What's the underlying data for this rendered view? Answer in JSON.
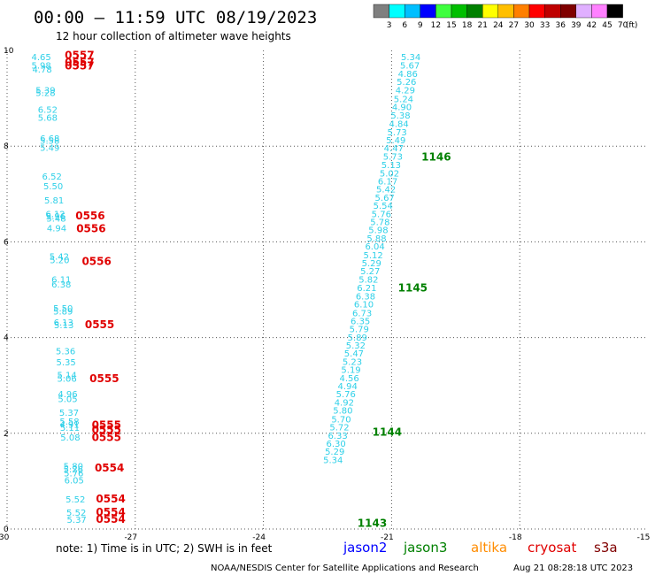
{
  "header": {
    "title": "00:00 — 11:59 UTC 08/19/2023",
    "subtitle": "12 hour collection of altimeter wave heights"
  },
  "color_scale": {
    "colors": [
      "#7f7f7f",
      "#00ffff",
      "#00bfff",
      "#0000ff",
      "#3fff3f",
      "#00bf00",
      "#008000",
      "#ffff00",
      "#ffbf00",
      "#ff7f00",
      "#ff0000",
      "#bf0000",
      "#7f0000",
      "#e0b0ff",
      "#ff80ff",
      "#000000"
    ],
    "labels": [
      "3",
      "6",
      "9",
      "12",
      "15",
      "18",
      "21",
      "24",
      "27",
      "30",
      "33",
      "36",
      "39",
      "42",
      "45",
      "70"
    ],
    "unit": "(ft)"
  },
  "footer": {
    "note": "note:  1) Time is in UTC;  2) SWH is in feet",
    "satellites": [
      {
        "name": "jason2",
        "color": "#0000ff"
      },
      {
        "name": "jason3",
        "color": "#008000"
      },
      {
        "name": "altika",
        "color": "#ff8c00"
      },
      {
        "name": "cryosat",
        "color": "#e00000"
      },
      {
        "name": "s3a",
        "color": "#800000"
      }
    ],
    "credit": "NOAA/NESDIS Center for Satellite Applications and Research",
    "timestamp": "Aug 21 08:28:18 UTC 2023"
  },
  "chart_data": {
    "type": "scatter",
    "title": "00:00 — 11:59 UTC 08/19/2023",
    "subtitle": "12 hour collection of altimeter wave heights",
    "xlim": [
      -30,
      -15
    ],
    "ylim": [
      0,
      10
    ],
    "xticks": [
      "-30",
      "-27",
      "-24",
      "-21",
      "-18",
      "-15"
    ],
    "yticks": [
      "0",
      "2",
      "4",
      "6",
      "8",
      "10"
    ],
    "grid": true,
    "swh_color": "#2fd0e8",
    "series": [
      {
        "name": "cryosat",
        "color": "#e00000",
        "points": [
          {
            "x": -29.2,
            "y": 9.8,
            "v": "4.65"
          },
          {
            "x": -29.2,
            "y": 9.62,
            "v": "5.98"
          },
          {
            "x": -29.18,
            "y": 9.54,
            "v": "4.78"
          },
          {
            "x": -29.1,
            "y": 9.1,
            "v": "5.39"
          },
          {
            "x": -29.1,
            "y": 9.05,
            "v": "5.28"
          },
          {
            "x": -29.05,
            "y": 8.7,
            "v": "6.52"
          },
          {
            "x": -29.05,
            "y": 8.53,
            "v": "5.68"
          },
          {
            "x": -29.0,
            "y": 8.1,
            "v": "6.68"
          },
          {
            "x": -29.0,
            "y": 8.05,
            "v": "5.58"
          },
          {
            "x": -29.0,
            "y": 7.9,
            "v": "5.49"
          },
          {
            "x": -28.95,
            "y": 7.3,
            "v": "6.52"
          },
          {
            "x": -28.92,
            "y": 7.1,
            "v": "5.50"
          },
          {
            "x": -28.9,
            "y": 6.8,
            "v": "5.81"
          },
          {
            "x": -28.87,
            "y": 6.52,
            "v": "6.12"
          },
          {
            "x": -28.86,
            "y": 6.47,
            "v": "5.96"
          },
          {
            "x": -28.85,
            "y": 6.42,
            "v": "5.48"
          },
          {
            "x": -28.84,
            "y": 6.22,
            "v": "4.94"
          },
          {
            "x": -28.78,
            "y": 5.63,
            "v": "5.42"
          },
          {
            "x": -28.77,
            "y": 5.55,
            "v": "5.20"
          },
          {
            "x": -28.73,
            "y": 5.15,
            "v": "6.11"
          },
          {
            "x": -28.73,
            "y": 5.05,
            "v": "6.38"
          },
          {
            "x": -28.69,
            "y": 4.55,
            "v": "5.50"
          },
          {
            "x": -28.69,
            "y": 4.48,
            "v": "5.89"
          },
          {
            "x": -28.68,
            "y": 4.25,
            "v": "6.13"
          },
          {
            "x": -28.67,
            "y": 4.2,
            "v": "5.13"
          },
          {
            "x": -28.63,
            "y": 3.65,
            "v": "5.36"
          },
          {
            "x": -28.62,
            "y": 3.42,
            "v": "5.35"
          },
          {
            "x": -28.6,
            "y": 3.15,
            "v": "5.14"
          },
          {
            "x": -28.6,
            "y": 3.08,
            "v": "5.06"
          },
          {
            "x": -28.58,
            "y": 2.75,
            "v": "4.96"
          },
          {
            "x": -28.58,
            "y": 2.65,
            "v": "5.05"
          },
          {
            "x": -28.55,
            "y": 2.37,
            "v": "5.37"
          },
          {
            "x": -28.54,
            "y": 2.18,
            "v": "5.58"
          },
          {
            "x": -28.54,
            "y": 2.12,
            "v": "4.91"
          },
          {
            "x": -28.53,
            "y": 2.05,
            "v": "5.11"
          },
          {
            "x": -28.52,
            "y": 1.85,
            "v": "5.08"
          },
          {
            "x": -28.45,
            "y": 1.25,
            "v": "5.80"
          },
          {
            "x": -28.45,
            "y": 1.18,
            "v": "5.26"
          },
          {
            "x": -28.44,
            "y": 1.1,
            "v": "5.76"
          },
          {
            "x": -28.43,
            "y": 0.95,
            "v": "6.05"
          },
          {
            "x": -28.4,
            "y": 0.55,
            "v": "5.52"
          },
          {
            "x": -28.38,
            "y": 0.28,
            "v": "5.52"
          },
          {
            "x": -28.37,
            "y": 0.13,
            "v": "5.37"
          }
        ],
        "times": [
          {
            "x": -28.65,
            "y": 9.82,
            "t": "0557"
          },
          {
            "x": -28.65,
            "y": 9.68,
            "t": "0557"
          },
          {
            "x": -28.65,
            "y": 9.6,
            "t": "0557"
          },
          {
            "x": -28.4,
            "y": 6.47,
            "t": "0556"
          },
          {
            "x": -28.38,
            "y": 6.2,
            "t": "0556"
          },
          {
            "x": -28.25,
            "y": 5.52,
            "t": "0556"
          },
          {
            "x": -28.18,
            "y": 4.2,
            "t": "0555"
          },
          {
            "x": -28.07,
            "y": 3.07,
            "t": "0555"
          },
          {
            "x": -28.02,
            "y": 2.1,
            "t": "0555"
          },
          {
            "x": -28.02,
            "y": 2.0,
            "t": "0555"
          },
          {
            "x": -28.02,
            "y": 1.84,
            "t": "0555"
          },
          {
            "x": -27.95,
            "y": 1.2,
            "t": "0554"
          },
          {
            "x": -27.92,
            "y": 0.55,
            "t": "0554"
          },
          {
            "x": -27.92,
            "y": 0.28,
            "t": "0554"
          },
          {
            "x": -27.92,
            "y": 0.13,
            "t": "0554"
          }
        ]
      },
      {
        "name": "jason3",
        "color": "#008000",
        "points": [
          {
            "x": -20.55,
            "y": 9.8,
            "v": "5.34"
          },
          {
            "x": -20.57,
            "y": 9.62,
            "v": "5.67"
          },
          {
            "x": -20.62,
            "y": 9.45,
            "v": "4.86"
          },
          {
            "x": -20.65,
            "y": 9.28,
            "v": "5.26"
          },
          {
            "x": -20.68,
            "y": 9.1,
            "v": "4.29"
          },
          {
            "x": -20.72,
            "y": 8.92,
            "v": "5.24"
          },
          {
            "x": -20.76,
            "y": 8.75,
            "v": "4.90"
          },
          {
            "x": -20.79,
            "y": 8.58,
            "v": "5.38"
          },
          {
            "x": -20.83,
            "y": 8.4,
            "v": "4.84"
          },
          {
            "x": -20.87,
            "y": 8.23,
            "v": "5.73"
          },
          {
            "x": -20.9,
            "y": 8.06,
            "v": "5.49"
          },
          {
            "x": -20.95,
            "y": 7.89,
            "v": "4.47"
          },
          {
            "x": -20.97,
            "y": 7.72,
            "v": "5.73"
          },
          {
            "x": -21.01,
            "y": 7.54,
            "v": "5.13"
          },
          {
            "x": -21.05,
            "y": 7.37,
            "v": "5.02"
          },
          {
            "x": -21.09,
            "y": 7.2,
            "v": "6.17"
          },
          {
            "x": -21.13,
            "y": 7.03,
            "v": "5.42"
          },
          {
            "x": -21.16,
            "y": 6.86,
            "v": "5.67"
          },
          {
            "x": -21.2,
            "y": 6.69,
            "v": "5.54"
          },
          {
            "x": -21.24,
            "y": 6.52,
            "v": "5.76"
          },
          {
            "x": -21.27,
            "y": 6.35,
            "v": "5.78"
          },
          {
            "x": -21.31,
            "y": 6.18,
            "v": "5.98"
          },
          {
            "x": -21.35,
            "y": 6.01,
            "v": "5.88"
          },
          {
            "x": -21.39,
            "y": 5.84,
            "v": "6.04"
          },
          {
            "x": -21.43,
            "y": 5.66,
            "v": "5.12"
          },
          {
            "x": -21.47,
            "y": 5.49,
            "v": "5.29"
          },
          {
            "x": -21.5,
            "y": 5.32,
            "v": "5.27"
          },
          {
            "x": -21.54,
            "y": 5.15,
            "v": "5.82"
          },
          {
            "x": -21.58,
            "y": 4.97,
            "v": "6.21"
          },
          {
            "x": -21.61,
            "y": 4.8,
            "v": "6.38"
          },
          {
            "x": -21.65,
            "y": 4.63,
            "v": "6.10"
          },
          {
            "x": -21.69,
            "y": 4.45,
            "v": "6.73"
          },
          {
            "x": -21.73,
            "y": 4.28,
            "v": "6.35"
          },
          {
            "x": -21.76,
            "y": 4.11,
            "v": "5.79"
          },
          {
            "x": -21.8,
            "y": 3.94,
            "v": "5.89"
          },
          {
            "x": -21.84,
            "y": 3.77,
            "v": "5.32"
          },
          {
            "x": -21.88,
            "y": 3.6,
            "v": "5.47"
          },
          {
            "x": -21.92,
            "y": 3.43,
            "v": "5.23"
          },
          {
            "x": -21.95,
            "y": 3.26,
            "v": "5.19"
          },
          {
            "x": -21.99,
            "y": 3.09,
            "v": "4.56"
          },
          {
            "x": -22.03,
            "y": 2.92,
            "v": "4.94"
          },
          {
            "x": -22.07,
            "y": 2.75,
            "v": "5.76"
          },
          {
            "x": -22.11,
            "y": 2.58,
            "v": "4.92"
          },
          {
            "x": -22.14,
            "y": 2.41,
            "v": "5.80"
          },
          {
            "x": -22.18,
            "y": 2.23,
            "v": "5.70"
          },
          {
            "x": -22.22,
            "y": 2.06,
            "v": "5.72"
          },
          {
            "x": -22.26,
            "y": 1.89,
            "v": "6.33"
          },
          {
            "x": -22.3,
            "y": 1.72,
            "v": "6.30"
          },
          {
            "x": -22.33,
            "y": 1.55,
            "v": "5.29"
          },
          {
            "x": -22.37,
            "y": 1.38,
            "v": "5.34"
          }
        ],
        "times": [
          {
            "x": -20.3,
            "y": 7.7,
            "t": "1146"
          },
          {
            "x": -20.85,
            "y": 4.96,
            "t": "1145"
          },
          {
            "x": -21.45,
            "y": 1.95,
            "t": "1144"
          },
          {
            "x": -21.8,
            "y": 0.05,
            "t": "1143"
          }
        ]
      }
    ]
  }
}
